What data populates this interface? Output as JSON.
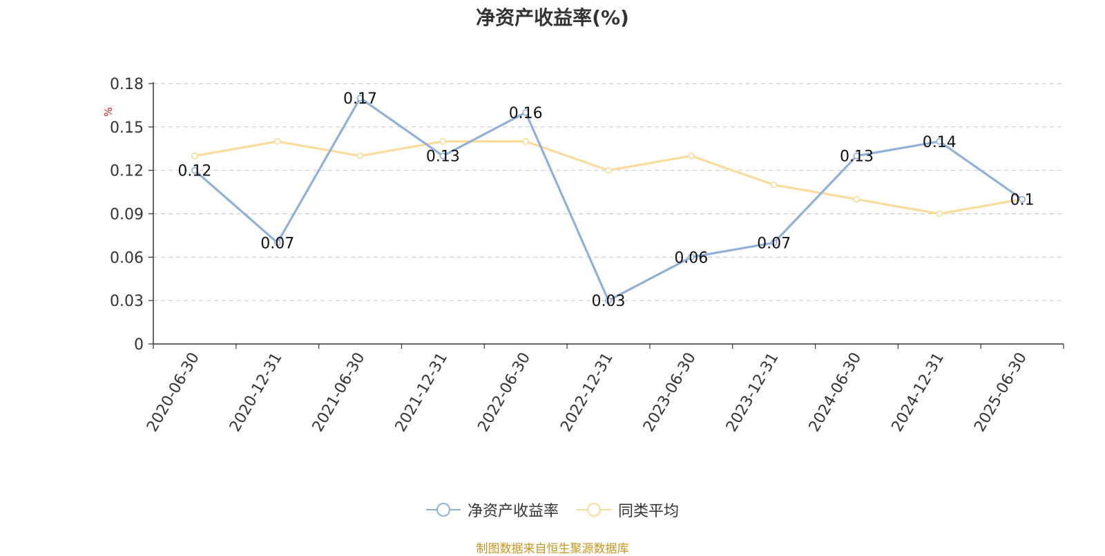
{
  "chart_data": {
    "type": "line",
    "title": "净资产收益率(%)",
    "ylabel": "%",
    "ylim": [
      0,
      0.18
    ],
    "yticks": [
      "0",
      "0.03",
      "0.06",
      "0.09",
      "0.12",
      "0.15",
      "0.18"
    ],
    "categories": [
      "2020-06-30",
      "2020-12-31",
      "2021-06-30",
      "2021-12-31",
      "2022-06-30",
      "2022-12-31",
      "2023-06-30",
      "2023-12-31",
      "2024-06-30",
      "2024-12-31",
      "2025-06-30"
    ],
    "grid": true,
    "legend_position": "bottom",
    "series": [
      {
        "name": "净资产收益率",
        "color": "#8fb0d9",
        "values": [
          0.12,
          0.07,
          0.17,
          0.13,
          0.16,
          0.03,
          0.06,
          0.07,
          0.13,
          0.14,
          0.1
        ],
        "labels": [
          "0.12",
          "0.07",
          "0.17",
          "0.13",
          "0.16",
          "0.03",
          "0.06",
          "0.07",
          "0.13",
          "0.14",
          "0.1"
        ]
      },
      {
        "name": "同类平均",
        "color": "#fadb9a",
        "values": [
          0.13,
          0.14,
          0.13,
          0.14,
          0.14,
          0.12,
          0.13,
          0.11,
          0.1,
          0.09,
          0.1
        ]
      }
    ],
    "source": "制图数据来自恒生聚源数据库"
  }
}
